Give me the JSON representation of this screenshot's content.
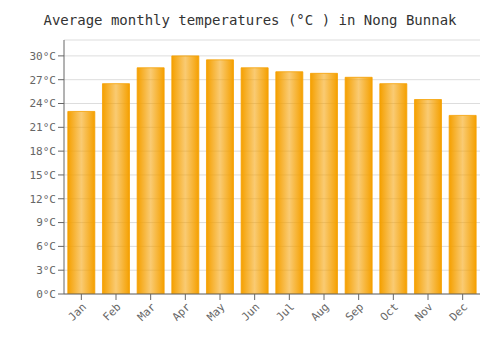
{
  "chart_data": {
    "type": "bar",
    "title": "Average monthly temperatures (°C ) in Nong Bunnak",
    "categories": [
      "Jan",
      "Feb",
      "Mar",
      "Apr",
      "May",
      "Jun",
      "Jul",
      "Aug",
      "Sep",
      "Oct",
      "Nov",
      "Dec"
    ],
    "values": [
      23.0,
      26.5,
      28.5,
      30.0,
      29.5,
      28.5,
      28.0,
      27.8,
      27.3,
      26.5,
      24.5,
      22.5
    ],
    "color": "#F5A000",
    "ylim": [
      0,
      32
    ],
    "yticks": [
      {
        "value": 0,
        "label": "0°C"
      },
      {
        "value": 3,
        "label": "3°C"
      },
      {
        "value": 6,
        "label": "6°C"
      },
      {
        "value": 9,
        "label": "9°C"
      },
      {
        "value": 12,
        "label": "12°C"
      },
      {
        "value": 15,
        "label": "15°C"
      },
      {
        "value": 18,
        "label": "18°C"
      },
      {
        "value": 21,
        "label": "21°C"
      },
      {
        "value": 24,
        "label": "24°C"
      },
      {
        "value": 27,
        "label": "27°C"
      },
      {
        "value": 30,
        "label": "30°C"
      }
    ],
    "grid": true
  }
}
